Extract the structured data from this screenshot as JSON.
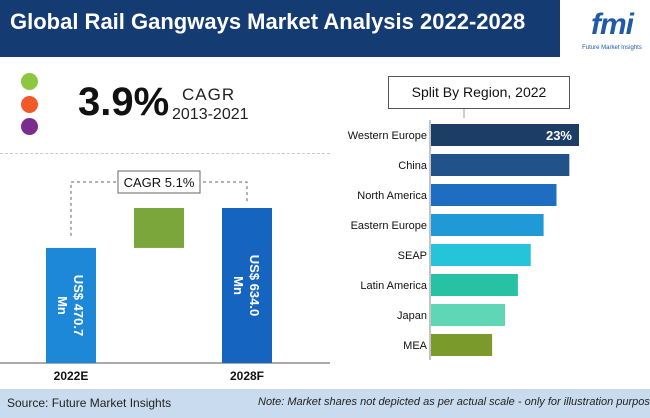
{
  "header": {
    "title": "Global Rail Gangways Market Analysis 2022-2028"
  },
  "logo": {
    "name": "fmi",
    "subtitle": "Future Market Insights"
  },
  "legend_dots": [
    "#8dc63f",
    "#f05a28",
    "#7b2d8e"
  ],
  "kpi": {
    "cagr_value": "3.9%",
    "cagr_label": "CAGR",
    "cagr_period": "2013-2021"
  },
  "chart_data": [
    {
      "type": "bar",
      "categories": [
        "2022E",
        "2028F"
      ],
      "values": [
        470.7,
        634.0
      ],
      "data_labels": [
        "US$ 470.7 Mn",
        "US$ 634.0 Mn"
      ],
      "annotation": "CAGR 5.1%",
      "colors": {
        "bar": "#1e88d8",
        "bar_dark": "#1565c0",
        "growth": "#7aa63b"
      }
    },
    {
      "type": "bar",
      "orientation": "horizontal",
      "title": "Split By Region, 2022",
      "categories": [
        "Western Europe",
        "China",
        "North America",
        "Eastern Europe",
        "SEAP",
        "Latin America",
        "Japan",
        "MEA"
      ],
      "values": [
        23,
        21.5,
        19.5,
        17.5,
        15.5,
        13.5,
        11.5,
        9.5
      ],
      "data_labels": [
        "23%",
        "",
        "",
        "",
        "",
        "",
        "",
        ""
      ],
      "colors": [
        "#1c3d66",
        "#22528a",
        "#1f6dc0",
        "#1f9ad6",
        "#26c4d8",
        "#27c2a4",
        "#5fd6b5",
        "#7a9b2c"
      ]
    }
  ],
  "footer": {
    "source": "Source: Future Market Insights",
    "note": "Note: Market shares not depicted as per actual scale - only for illustration purposes"
  }
}
